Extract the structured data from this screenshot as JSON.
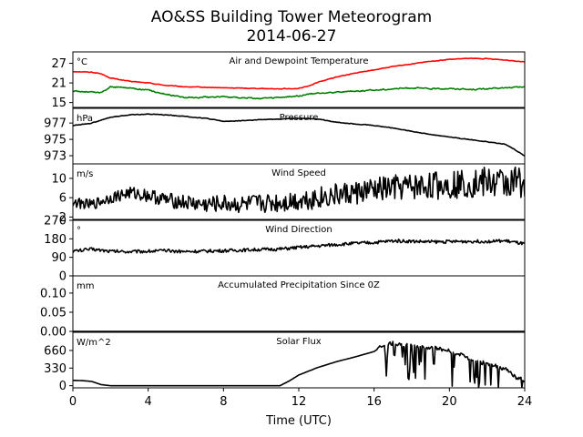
{
  "figure": {
    "title_line1": "AO&SS Building Tower Meteorogram",
    "title_line2": "2014-06-27",
    "xlabel": "Time (UTC)"
  },
  "chart_data": [
    {
      "type": "line",
      "title": "Air and Dewpoint Temperature",
      "unit_label": "°C",
      "x_range": [
        0,
        24
      ],
      "ylim": [
        13.5,
        30.5
      ],
      "yticks": [
        15,
        21,
        27
      ],
      "x": [
        0,
        1,
        1.5,
        2,
        3,
        4,
        5,
        6,
        8,
        10,
        11,
        12,
        12.5,
        13,
        14,
        15,
        16,
        17,
        18,
        19,
        20,
        21,
        22,
        23,
        24
      ],
      "series": [
        {
          "name": "",
          "color": "#ff0000",
          "noise": 0.15,
          "values": [
            24.5,
            24.3,
            23.8,
            22.5,
            21.5,
            21.0,
            20.2,
            19.8,
            19.5,
            19.3,
            19.2,
            19.3,
            20.0,
            21.2,
            22.8,
            24.0,
            25.0,
            26.0,
            26.8,
            27.6,
            28.2,
            28.5,
            28.4,
            28.0,
            27.5
          ]
        },
        {
          "name": "",
          "color": "#008000",
          "noise": 0.3,
          "values": [
            18.5,
            18.2,
            18.0,
            19.8,
            19.5,
            18.8,
            17.5,
            16.5,
            16.8,
            16.2,
            16.5,
            17.0,
            17.5,
            17.8,
            18.2,
            18.5,
            18.8,
            19.2,
            19.5,
            19.2,
            19.3,
            19.0,
            19.2,
            19.5,
            19.8
          ]
        }
      ]
    },
    {
      "type": "line",
      "title": "Pressure",
      "unit_label": "hPa",
      "x_range": [
        0,
        24
      ],
      "ylim": [
        972.0,
        978.8
      ],
      "yticks": [
        973,
        975,
        977
      ],
      "x": [
        0,
        1,
        2,
        3,
        4,
        5,
        6,
        7,
        8,
        9,
        10,
        11,
        12,
        13,
        14,
        15,
        16,
        17,
        18,
        19,
        20,
        21,
        22,
        23,
        24
      ],
      "series": [
        {
          "name": "",
          "color": "#000000",
          "noise": 0.06,
          "values": [
            976.7,
            977.0,
            977.7,
            978.0,
            978.1,
            978.0,
            977.8,
            977.6,
            977.2,
            977.3,
            977.4,
            977.5,
            977.6,
            977.5,
            977.1,
            976.9,
            976.7,
            976.4,
            976.0,
            975.6,
            975.3,
            975.0,
            974.7,
            974.4,
            973.0
          ]
        }
      ]
    },
    {
      "type": "line",
      "title": "Wind Speed",
      "unit_label": "m/s",
      "x_range": [
        0,
        24
      ],
      "ylim": [
        1.5,
        13.0
      ],
      "yticks": [
        2,
        6,
        10
      ],
      "x": [
        0,
        1,
        2,
        3,
        4,
        5,
        6,
        7,
        8,
        9,
        10,
        11,
        12,
        13,
        14,
        15,
        16,
        17,
        18,
        19,
        20,
        21,
        22,
        23,
        24
      ],
      "series": [
        {
          "name": "",
          "color": "#000000",
          "noise": 1.0,
          "noise_growth": 0.1,
          "values": [
            5.0,
            4.5,
            6.0,
            7.0,
            6.5,
            5.5,
            5.0,
            4.5,
            4.8,
            4.5,
            4.8,
            5.0,
            5.5,
            6.0,
            6.5,
            7.0,
            7.5,
            8.0,
            8.2,
            8.5,
            8.8,
            9.0,
            9.2,
            9.0,
            9.5
          ]
        }
      ]
    },
    {
      "type": "line",
      "title": "Wind Direction",
      "unit_label": "°",
      "x_range": [
        0,
        24
      ],
      "ylim": [
        0,
        270
      ],
      "yticks": [
        0,
        90,
        180,
        270
      ],
      "x": [
        0,
        1,
        2,
        3,
        4,
        5,
        6,
        7,
        8,
        9,
        10,
        11,
        12,
        13,
        14,
        15,
        16,
        17,
        18,
        19,
        20,
        21,
        22,
        23,
        24
      ],
      "series": [
        {
          "name": "",
          "color": "#000000",
          "noise": 8,
          "values": [
            120,
            130,
            120,
            118,
            120,
            122,
            118,
            120,
            122,
            125,
            128,
            130,
            138,
            145,
            152,
            158,
            162,
            170,
            168,
            165,
            166,
            168,
            168,
            170,
            155
          ]
        }
      ]
    },
    {
      "type": "line",
      "title": "Accumulated Precipitation Since 0Z",
      "unit_label": "mm",
      "x_range": [
        0,
        24
      ],
      "ylim": [
        0,
        0.145
      ],
      "yticks": [
        0.0,
        0.05,
        0.1
      ],
      "ytick_labels": [
        "0.00",
        "0.05",
        "0.10"
      ],
      "x": [
        0,
        24
      ],
      "series": [
        {
          "name": "",
          "color": "#000000",
          "noise": 0,
          "values": [
            0,
            0
          ]
        }
      ]
    },
    {
      "type": "line",
      "title": "Solar Flux",
      "unit_label": "W/m^2",
      "x_range": [
        0,
        24
      ],
      "ylim": [
        -40,
        1000
      ],
      "yticks": [
        0,
        330,
        660
      ],
      "x": [
        0,
        0.5,
        1,
        1.5,
        2,
        3,
        4,
        6,
        8,
        10,
        11,
        11.5,
        12,
        13,
        14,
        15,
        16,
        16.5,
        17,
        18,
        19,
        20,
        21,
        22,
        23,
        23.5,
        24
      ],
      "series": [
        {
          "name": "",
          "color": "#000000",
          "noise": 0,
          "volatile_from": 16.2,
          "values": [
            100,
            95,
            80,
            20,
            0,
            0,
            0,
            0,
            0,
            0,
            0,
            90,
            200,
            340,
            450,
            540,
            640,
            760,
            800,
            740,
            720,
            650,
            520,
            400,
            320,
            150,
            100
          ]
        }
      ]
    }
  ],
  "x_axis": {
    "ticks": [
      0,
      4,
      8,
      12,
      16,
      20,
      24
    ],
    "tick_labels": [
      "0",
      "4",
      "8",
      "12",
      "16",
      "20",
      "24"
    ]
  }
}
